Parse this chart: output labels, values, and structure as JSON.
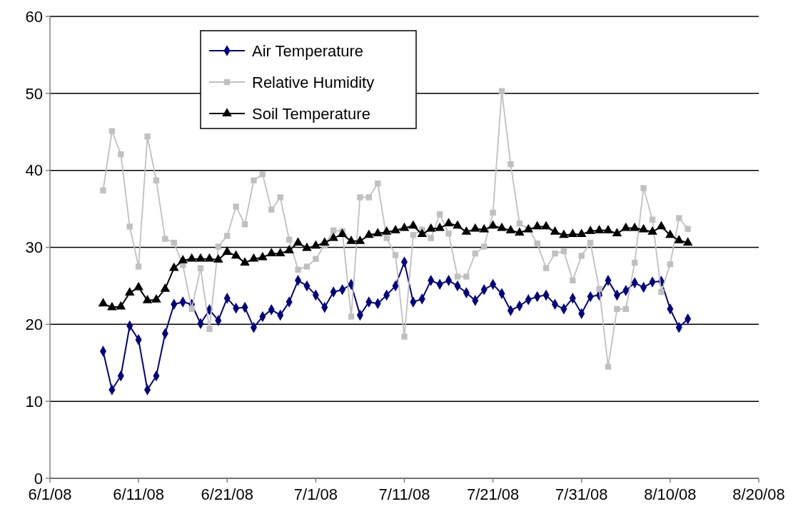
{
  "chart_data": {
    "type": "line",
    "x": [
      "--06-07",
      "--06-08",
      "--06-09",
      "--06-10",
      "--06-11",
      "--06-12",
      "--06-13",
      "--06-14",
      "--06-15",
      "--06-16",
      "--06-17",
      "--06-18",
      "--06-19",
      "--06-20",
      "--06-21",
      "--06-22",
      "--06-23",
      "--06-24",
      "--06-25",
      "--06-26",
      "--06-27",
      "--06-28",
      "--06-29",
      "--06-30",
      "--07-01",
      "--07-02",
      "--07-03",
      "--07-04",
      "--07-05",
      "--07-06",
      "--07-07",
      "--07-08",
      "--07-09",
      "--07-10",
      "--07-11",
      "--07-12",
      "--07-13",
      "--07-14",
      "--07-15",
      "--07-16",
      "--07-17",
      "--07-18",
      "--07-19",
      "--07-20",
      "--07-21",
      "--07-22",
      "--07-23",
      "--07-24",
      "--07-25",
      "--07-26",
      "--07-27",
      "--07-28",
      "--07-29",
      "--07-30",
      "--07-31",
      "--08-01",
      "--08-02",
      "--08-03",
      "--08-04",
      "--08-05",
      "--08-06",
      "--08-07",
      "--08-08",
      "--08-09",
      "--08-10",
      "--08-11",
      "--08-12"
    ],
    "series": [
      {
        "name": "Air Temperature",
        "color": "#000080",
        "marker": "diamond",
        "values": [
          16.5,
          11.5,
          13.3,
          19.8,
          18.0,
          11.5,
          13.3,
          18.8,
          22.6,
          22.9,
          22.6,
          20.1,
          21.9,
          20.5,
          23.4,
          22.1,
          22.2,
          19.6,
          21.0,
          21.9,
          21.2,
          22.9,
          25.7,
          25.0,
          23.8,
          22.2,
          24.2,
          24.5,
          25.2,
          21.2,
          22.9,
          22.7,
          23.8,
          25.0,
          28.1,
          22.9,
          23.3,
          25.7,
          25.2,
          25.7,
          25.0,
          24.1,
          23.1,
          24.5,
          25.2,
          24.0,
          21.8,
          22.4,
          23.2,
          23.6,
          23.8,
          22.6,
          22.0,
          23.4,
          21.4,
          23.6,
          23.8,
          25.7,
          23.8,
          24.4,
          25.4,
          24.8,
          25.5,
          25.6,
          22.0,
          19.6,
          20.7
        ]
      },
      {
        "name": "Relative Humidity",
        "color": "#c0c0c0",
        "marker": "square",
        "values": [
          37.4,
          45.1,
          42.1,
          32.7,
          27.5,
          44.4,
          38.7,
          31.1,
          30.6,
          27.7,
          22.0,
          27.3,
          19.4,
          30.1,
          31.5,
          35.3,
          33.0,
          38.7,
          39.5,
          34.9,
          36.5,
          31.0,
          27.1,
          27.5,
          28.5,
          30.3,
          32.2,
          32.1,
          21.0,
          36.5,
          36.5,
          38.3,
          31.2,
          29.0,
          18.4,
          31.6,
          32.3,
          31.2,
          34.3,
          31.8,
          26.2,
          26.2,
          29.2,
          30.1,
          34.5,
          50.3,
          40.8,
          33.1,
          32.4,
          30.5,
          27.3,
          29.2,
          29.5,
          25.7,
          28.9,
          30.6,
          24.6,
          14.5,
          22.0,
          22.0,
          28.0,
          37.7,
          33.6,
          24.2,
          27.8,
          33.8,
          32.4
        ]
      },
      {
        "name": "Soil Temperature",
        "color": "#000000",
        "marker": "triangle",
        "values": [
          22.7,
          22.2,
          22.3,
          24.1,
          24.8,
          23.1,
          23.2,
          24.6,
          27.3,
          28.3,
          28.5,
          28.5,
          28.5,
          28.4,
          29.4,
          28.9,
          28.0,
          28.5,
          28.7,
          29.2,
          29.2,
          29.6,
          30.6,
          29.9,
          30.2,
          30.6,
          31.2,
          31.7,
          30.8,
          30.8,
          31.6,
          31.8,
          32.0,
          32.2,
          32.5,
          32.8,
          31.7,
          32.4,
          32.5,
          33.1,
          32.8,
          32.0,
          32.4,
          32.3,
          32.8,
          32.5,
          32.2,
          31.9,
          32.3,
          32.7,
          32.7,
          32.0,
          31.6,
          31.7,
          31.7,
          32.1,
          32.2,
          32.2,
          31.8,
          32.5,
          32.5,
          32.3,
          32.0,
          32.7,
          31.6,
          30.9,
          30.6
        ]
      }
    ],
    "xlim": [
      "--06-01",
      "--08-20"
    ],
    "xticks": [
      {
        "value": "--06-01",
        "label": "6/1/08"
      },
      {
        "value": "--06-11",
        "label": "6/11/08"
      },
      {
        "value": "--06-21",
        "label": "6/21/08"
      },
      {
        "value": "--07-01",
        "label": "7/1/08"
      },
      {
        "value": "--07-11",
        "label": "7/11/08"
      },
      {
        "value": "--07-21",
        "label": "7/21/08"
      },
      {
        "value": "--07-31",
        "label": "7/31/08"
      },
      {
        "value": "--08-10",
        "label": "8/10/08"
      },
      {
        "value": "--08-20",
        "label": "8/20/08"
      }
    ],
    "ylim": [
      0,
      60
    ],
    "yticks": [
      0,
      10,
      20,
      30,
      40,
      50,
      60
    ],
    "grid": "y",
    "legend": "top left",
    "line_style": "solid"
  }
}
